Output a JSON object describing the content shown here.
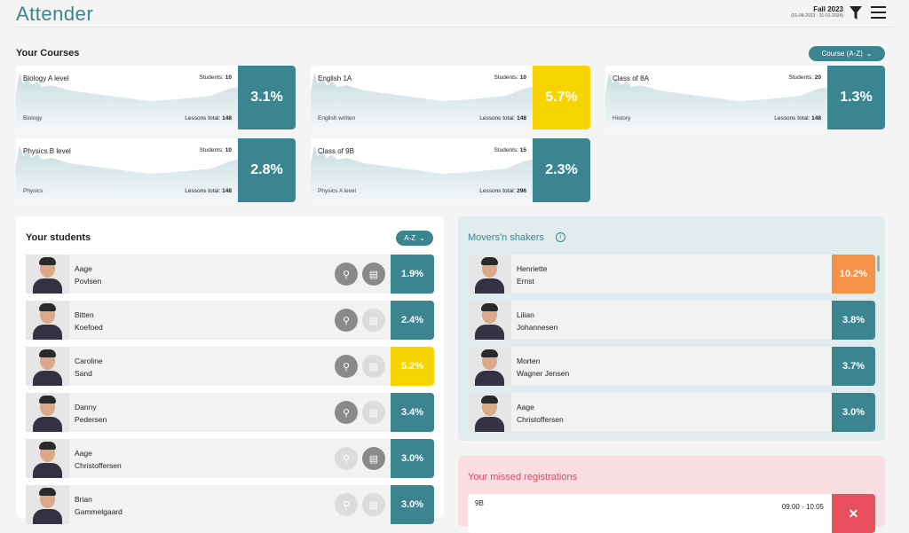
{
  "header": {
    "logo": "Attender",
    "term": "Fall 2023",
    "term_dates": "(01-08-2023 - 31-01-2024)",
    "filter_icon": "filter-icon",
    "menu_icon": "menu-icon"
  },
  "courses": {
    "title": "Your Courses",
    "sort_label": "Course (A-Z)",
    "students_label": "Students:",
    "lessons_label": "Lessons total:",
    "items": [
      {
        "name": "Biology A level",
        "students": "10",
        "subject": "Biology",
        "lessons": "148",
        "pct": "3.1%",
        "color": "#3b8590"
      },
      {
        "name": "English 1A",
        "students": "10",
        "subject": "English written",
        "lessons": "148",
        "pct": "5.7%",
        "color": "#f7d300"
      },
      {
        "name": "Class of 8A",
        "students": "20",
        "subject": "History",
        "lessons": "148",
        "pct": "1.3%",
        "color": "#3b8590"
      },
      {
        "name": "Physics B level",
        "students": "10",
        "subject": "Physics",
        "lessons": "148",
        "pct": "2.8%",
        "color": "#3b8590"
      },
      {
        "name": "Class of 9B",
        "students": "15",
        "subject": "Physics A level",
        "lessons": "296",
        "pct": "2.3%",
        "color": "#3b8590"
      }
    ]
  },
  "students": {
    "title": "Your students",
    "sort_label": "A-Z",
    "items": [
      {
        "first": "Aage",
        "last": "Povlsen",
        "pct": "1.9%",
        "color": "#3b8590",
        "pin": true,
        "chat": true
      },
      {
        "first": "Bitten",
        "last": "Koefoed",
        "pct": "2.4%",
        "color": "#3b8590",
        "pin": true,
        "chat": false
      },
      {
        "first": "Caroline",
        "last": "Sand",
        "pct": "5.2%",
        "color": "#f7d300",
        "pin": true,
        "chat": false
      },
      {
        "first": "Danny",
        "last": "Pedersen",
        "pct": "3.4%",
        "color": "#3b8590",
        "pin": true,
        "chat": false
      },
      {
        "first": "Aage",
        "last": "Christoffersen",
        "pct": "3.0%",
        "color": "#3b8590",
        "pin": false,
        "chat": true
      },
      {
        "first": "Brian",
        "last": "Gammelgaard",
        "pct": "3.0%",
        "color": "#3b8590",
        "pin": false,
        "chat": false
      }
    ]
  },
  "movers": {
    "title": "Movers'n shakers",
    "items": [
      {
        "first": "Henriette",
        "last": "Ernst",
        "pct": "10.2%",
        "color": "#f5924a"
      },
      {
        "first": "Lilian",
        "last": "Johannesen",
        "pct": "3.8%",
        "color": "#3b8590"
      },
      {
        "first": "Morten",
        "last": "Wagner Jensen",
        "pct": "3.7%",
        "color": "#3b8590"
      },
      {
        "first": "Aage",
        "last": "Christoffersen",
        "pct": "3.0%",
        "color": "#3b8590"
      }
    ]
  },
  "missed": {
    "title": "Your missed registrations",
    "items": [
      {
        "class": "9B",
        "time": "09:00 - 10:05"
      }
    ]
  }
}
